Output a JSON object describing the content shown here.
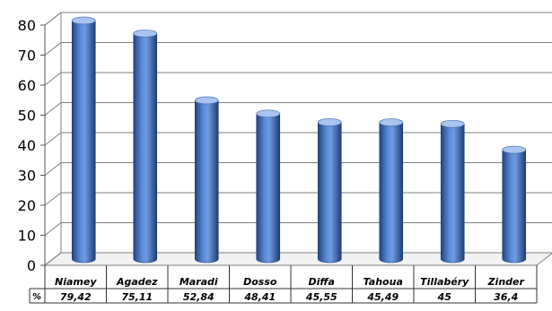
{
  "chart_data": {
    "type": "bar",
    "categories": [
      "Niamey",
      "Agadez",
      "Maradi",
      "Dosso",
      "Diffa",
      "Tahoua",
      "Tillabéry",
      "Zinder"
    ],
    "values": [
      79.42,
      75.11,
      52.84,
      48.41,
      45.55,
      45.49,
      45,
      36.4
    ],
    "value_labels": [
      "79,42",
      "75,11",
      "52,84",
      "48,41",
      "45,55",
      "45,49",
      "45",
      "36,4"
    ],
    "row_label": "%",
    "ylim": [
      0,
      80
    ],
    "yticks": [
      "0",
      "10",
      "20",
      "30",
      "40",
      "50",
      "60",
      "70",
      "80"
    ],
    "grid": true,
    "bar_style": "3d-cylinder",
    "colors": {
      "bar": "#4a78c4",
      "bar_dark": "#1f3f7a",
      "bar_light": "#a9c4ee",
      "grid": "#7f7f7f",
      "axis": "#555555"
    }
  }
}
